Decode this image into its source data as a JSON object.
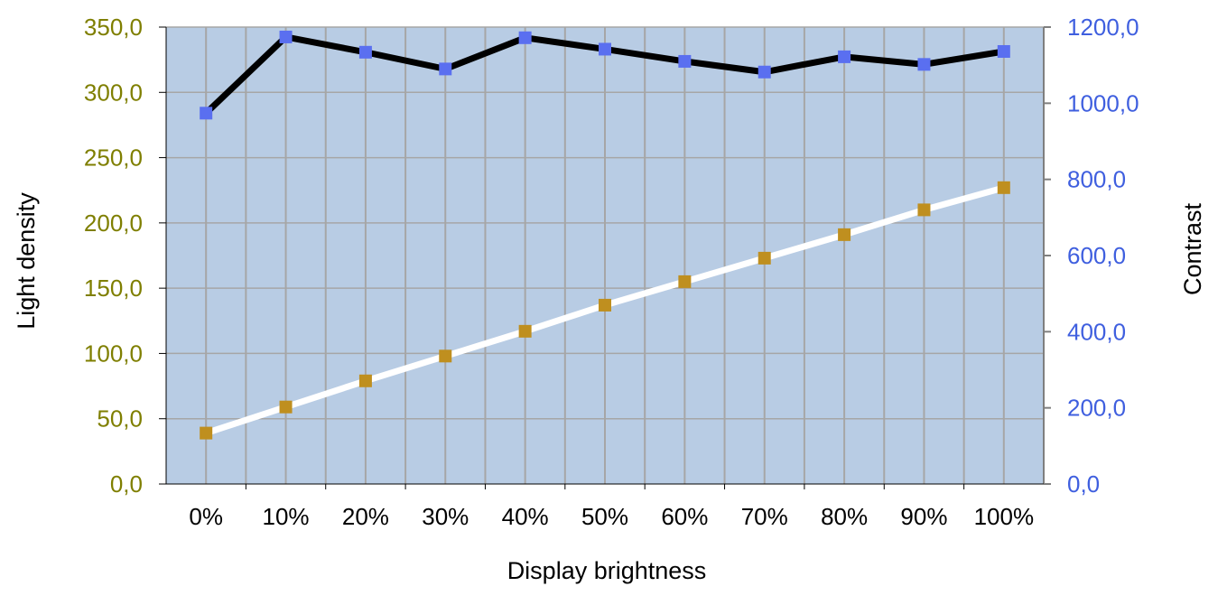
{
  "chart_data": {
    "type": "line",
    "xlabel": "Display brightness",
    "ylabel": "Light density",
    "y2label": "Contrast",
    "categories": [
      "0%",
      "10%",
      "20%",
      "30%",
      "40%",
      "50%",
      "60%",
      "70%",
      "80%",
      "90%",
      "100%"
    ],
    "ylim": [
      0,
      350
    ],
    "y2lim": [
      0,
      1200
    ],
    "yticks": [
      "0,0",
      "50,0",
      "100,0",
      "150,0",
      "200,0",
      "250,0",
      "300,0",
      "350,0"
    ],
    "y2ticks": [
      "0,0",
      "200,0",
      "400,0",
      "600,0",
      "800,0",
      "1000,0",
      "1200,0"
    ],
    "series": [
      {
        "axis": "left",
        "values": [
          39,
          59,
          79,
          98,
          117,
          137,
          155,
          173,
          191,
          210,
          227
        ]
      },
      {
        "axis": "right",
        "values": [
          974,
          1174,
          1134,
          1090,
          1172,
          1142,
          1110,
          1082,
          1122,
          1102,
          1136
        ]
      }
    ],
    "grid": true,
    "legend": "none"
  },
  "colors": {
    "plot_bg": "#b8cce4",
    "grid": "#a6a6a6",
    "left_axis_text": "#7f7f00",
    "right_axis_text": "#3f5fdf",
    "light_line": "#ffffff",
    "light_marker": "#bf8f1f",
    "contrast_line": "#000000",
    "contrast_marker": "#5a6ff0"
  }
}
